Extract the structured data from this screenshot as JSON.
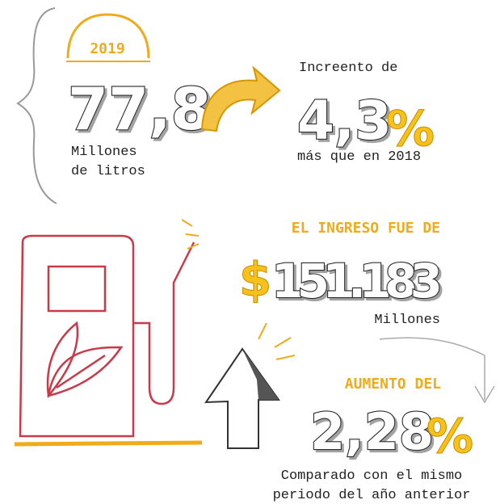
{
  "year": "2019",
  "volume": {
    "value": "77,8",
    "unit_lines": [
      "Millones",
      "de litros"
    ]
  },
  "growth": {
    "intro": "Increento de",
    "value": "4,3",
    "symbol": "%",
    "note": "más que en 2018"
  },
  "income": {
    "heading": "EL INGRESO FUE DE",
    "currency": "$",
    "value": "151.183",
    "unit": "Millones"
  },
  "increase": {
    "heading": "AUMENTO DEL",
    "value": "2,28",
    "symbol": "%",
    "note_lines": [
      "Comparado con el mismo",
      "periodo del año anterior"
    ]
  }
}
